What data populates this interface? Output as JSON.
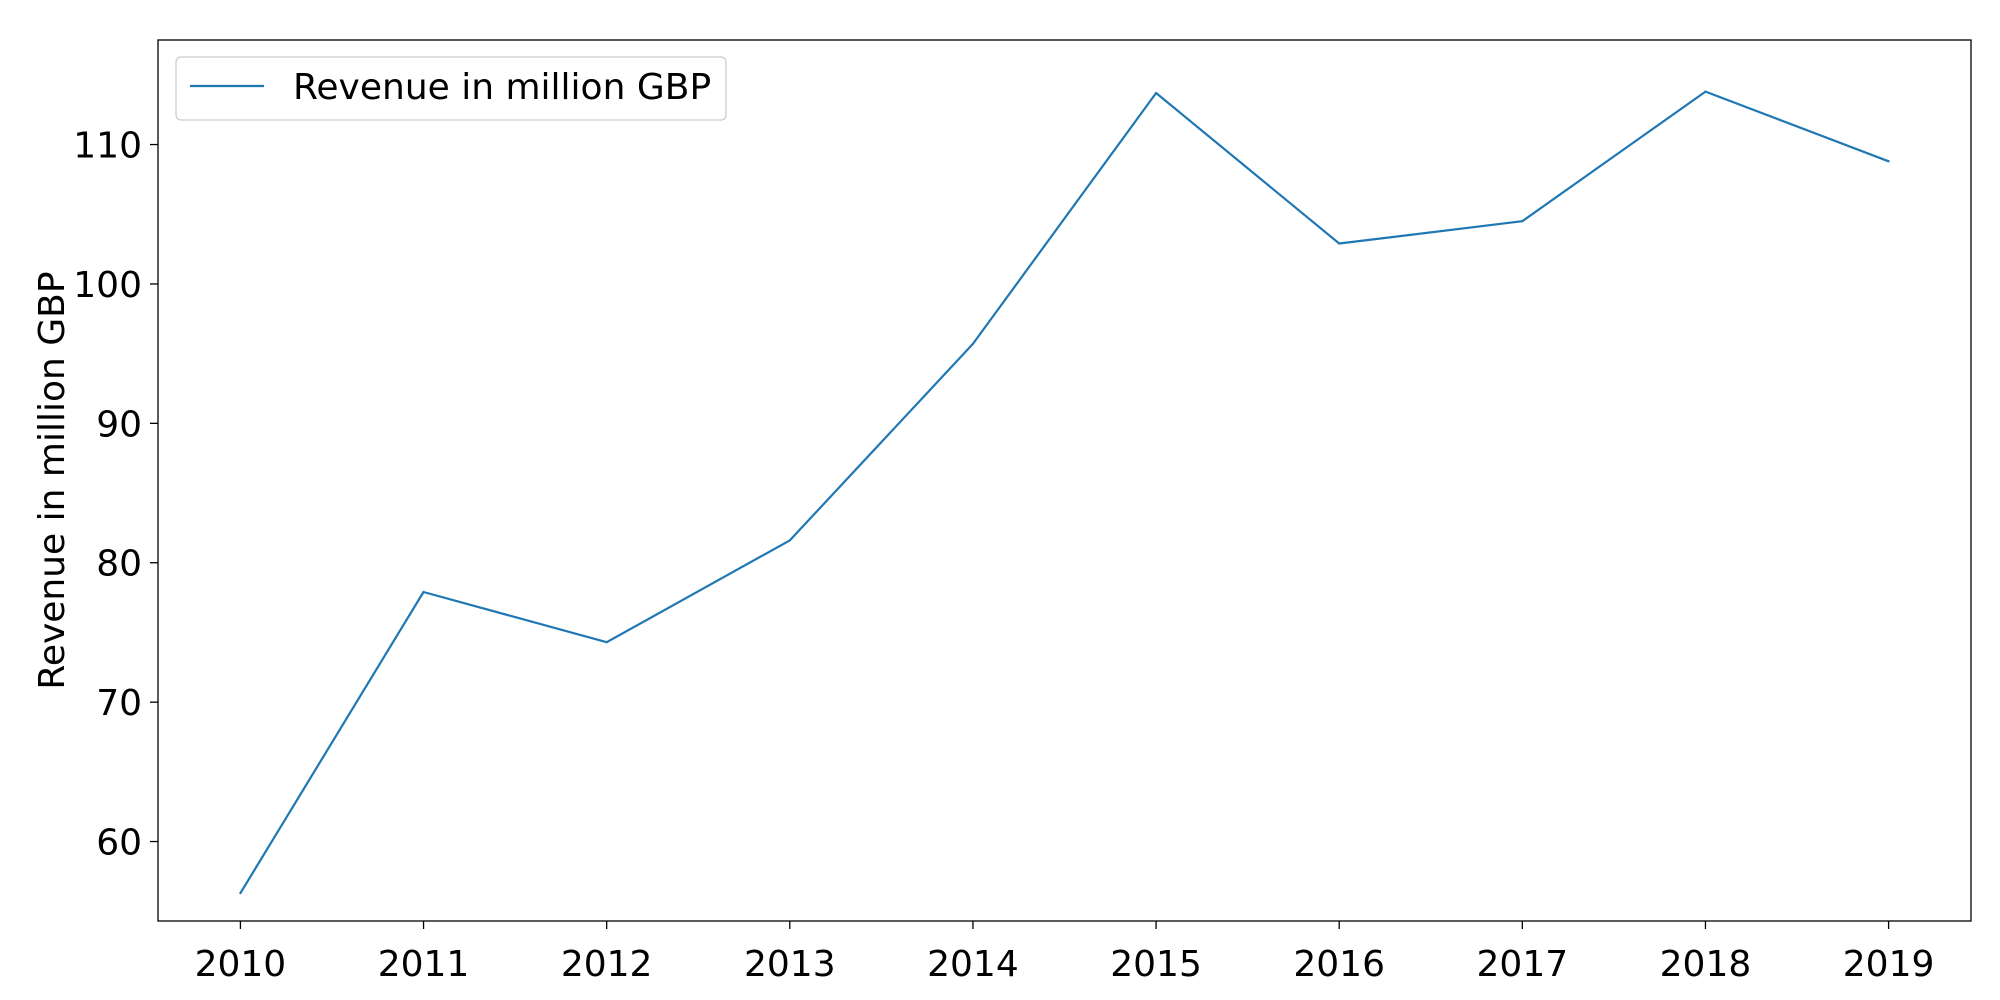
{
  "chart_data": {
    "type": "line",
    "title": "",
    "xlabel": "",
    "ylabel": "Revenue in million GBP",
    "x": [
      2010,
      2011,
      2012,
      2013,
      2014,
      2015,
      2016,
      2017,
      2018,
      2019
    ],
    "x_tick_labels": [
      "2010",
      "2011",
      "2012",
      "2013",
      "2014",
      "2015",
      "2016",
      "2017",
      "2018",
      "2019"
    ],
    "y_ticks": [
      60,
      70,
      80,
      90,
      100,
      110
    ],
    "y_tick_labels": [
      "60",
      "70",
      "80",
      "90",
      "100",
      "110"
    ],
    "xlim": [
      2009.55,
      2019.45
    ],
    "ylim": [
      54.3,
      117.5
    ],
    "grid": false,
    "legend_position": "top-left",
    "series": [
      {
        "name": "Revenue in million GBP",
        "color": "#1f77b4",
        "values": [
          56.3,
          77.9,
          74.3,
          81.6,
          95.7,
          113.7,
          102.9,
          104.5,
          113.8,
          108.8
        ]
      }
    ]
  }
}
